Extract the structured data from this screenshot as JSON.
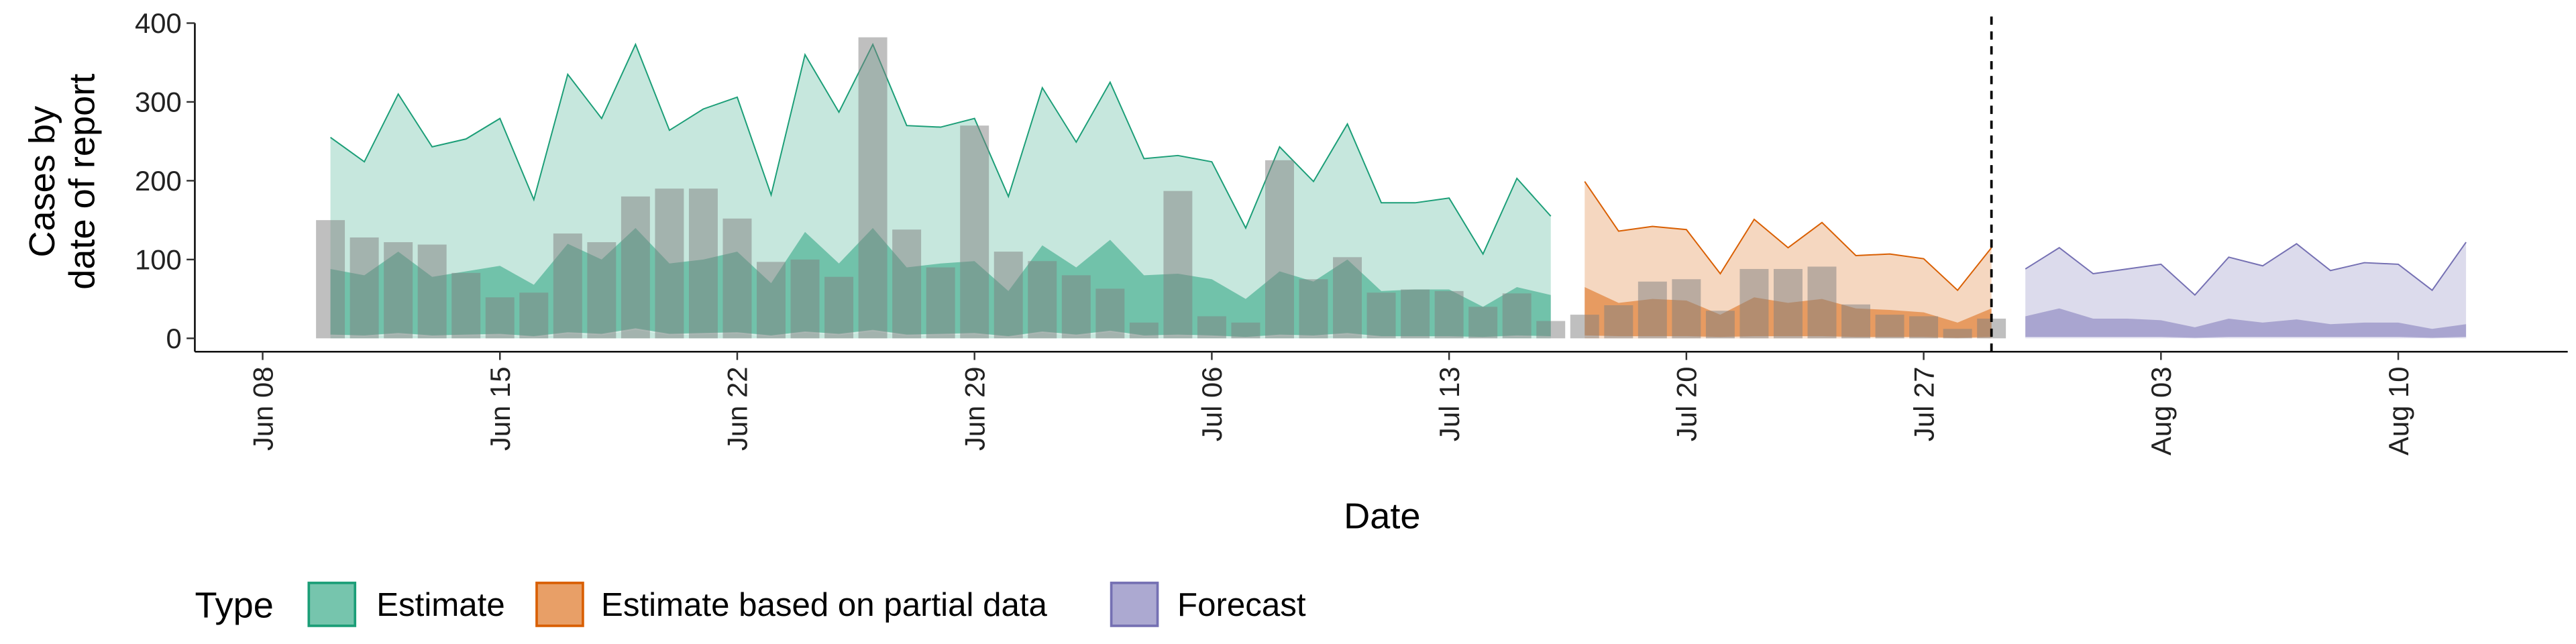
{
  "chart_data": {
    "type": "area",
    "xlabel": "Date",
    "ylabel": [
      "Cases by",
      "date of report"
    ],
    "legend_title": "Type",
    "legend": "bottom",
    "xlim": [
      "06-06",
      "08-15"
    ],
    "xticks": [
      {
        "value": "06-08",
        "label": "Jun 08"
      },
      {
        "value": "06-15",
        "label": "Jun 15"
      },
      {
        "value": "06-22",
        "label": "Jun 22"
      },
      {
        "value": "06-29",
        "label": "Jun 29"
      },
      {
        "value": "07-06",
        "label": "Jul 06"
      },
      {
        "value": "07-13",
        "label": "Jul 13"
      },
      {
        "value": "07-20",
        "label": "Jul 20"
      },
      {
        "value": "07-27",
        "label": "Jul 27"
      },
      {
        "value": "08-03",
        "label": "Aug 03"
      },
      {
        "value": "08-10",
        "label": "Aug 10"
      }
    ],
    "ylim": [
      -17,
      400
    ],
    "yticks": [
      0,
      100,
      200,
      300,
      400
    ],
    "vline": "07-29",
    "series": [
      {
        "name": "Estimate",
        "color": "#1b9e77",
        "x": [
          "06-10",
          "06-11",
          "06-12",
          "06-13",
          "06-14",
          "06-15",
          "06-16",
          "06-17",
          "06-18",
          "06-19",
          "06-20",
          "06-21",
          "06-22",
          "06-23",
          "06-24",
          "06-25",
          "06-26",
          "06-27",
          "06-28",
          "06-29",
          "06-30",
          "07-01",
          "07-02",
          "07-03",
          "07-04",
          "07-05",
          "07-06",
          "07-07",
          "07-08",
          "07-09",
          "07-10",
          "07-11",
          "07-12",
          "07-13",
          "07-14",
          "07-15",
          "07-16"
        ],
        "upper_90": [
          255,
          224,
          310,
          243,
          253,
          279,
          176,
          335,
          279,
          373,
          264,
          291,
          306,
          182,
          360,
          287,
          373,
          270,
          268,
          279,
          180,
          318,
          249,
          325,
          228,
          232,
          224,
          140,
          243,
          199,
          272,
          172,
          172,
          178,
          107,
          203,
          155
        ],
        "lower_90": [
          0,
          0,
          0,
          0,
          0,
          0,
          0,
          0,
          0,
          0,
          0,
          0,
          0,
          0,
          0,
          0,
          0,
          0,
          0,
          0,
          0,
          0,
          0,
          0,
          0,
          0,
          0,
          0,
          0,
          0,
          0,
          0,
          0,
          0,
          0,
          0,
          0
        ],
        "upper_50": [
          88,
          80,
          110,
          78,
          85,
          92,
          68,
          120,
          100,
          140,
          95,
          100,
          110,
          70,
          135,
          95,
          140,
          90,
          95,
          98,
          60,
          118,
          90,
          125,
          80,
          82,
          75,
          50,
          85,
          72,
          100,
          60,
          62,
          62,
          40,
          65,
          55
        ],
        "lower_50": [
          4,
          3,
          6,
          3,
          4,
          5,
          2,
          7,
          5,
          12,
          5,
          6,
          7,
          3,
          8,
          5,
          10,
          4,
          5,
          6,
          2,
          8,
          4,
          9,
          3,
          4,
          3,
          1,
          4,
          3,
          6,
          2,
          2,
          2,
          1,
          3,
          2
        ]
      },
      {
        "name": "Estimate based on partial data",
        "color": "#d95f02",
        "x": [
          "07-17",
          "07-18",
          "07-19",
          "07-20",
          "07-21",
          "07-22",
          "07-23",
          "07-24",
          "07-25",
          "07-26",
          "07-27",
          "07-28",
          "07-29"
        ],
        "upper_90": [
          199,
          136,
          142,
          138,
          82,
          151,
          115,
          147,
          105,
          107,
          101,
          61,
          115
        ],
        "lower_90": [
          0,
          0,
          0,
          0,
          0,
          0,
          0,
          0,
          0,
          0,
          0,
          0,
          0
        ],
        "upper_50": [
          65,
          45,
          50,
          48,
          30,
          52,
          45,
          50,
          38,
          36,
          33,
          20,
          38
        ],
        "lower_50": [
          3,
          2,
          2,
          2,
          1,
          2,
          2,
          2,
          1,
          1,
          1,
          0,
          1
        ]
      },
      {
        "name": "Forecast",
        "color": "#7570b3",
        "x": [
          "07-30",
          "07-31",
          "08-01",
          "08-02",
          "08-03",
          "08-04",
          "08-05",
          "08-06",
          "08-07",
          "08-08",
          "08-09",
          "08-10",
          "08-11",
          "08-12"
        ],
        "upper_90": [
          88,
          115,
          82,
          88,
          94,
          55,
          103,
          92,
          120,
          86,
          96,
          94,
          61,
          122
        ],
        "lower_90": [
          0,
          0,
          0,
          0,
          0,
          0,
          0,
          0,
          0,
          0,
          0,
          0,
          0,
          0
        ],
        "upper_50": [
          28,
          38,
          25,
          25,
          23,
          14,
          25,
          20,
          24,
          18,
          20,
          20,
          12,
          18
        ],
        "lower_50": [
          1,
          1,
          1,
          1,
          1,
          0,
          1,
          1,
          1,
          1,
          1,
          1,
          0,
          1
        ]
      }
    ],
    "bars": {
      "color": "#808080",
      "x": [
        "06-10",
        "06-11",
        "06-12",
        "06-13",
        "06-14",
        "06-15",
        "06-16",
        "06-17",
        "06-18",
        "06-19",
        "06-20",
        "06-21",
        "06-22",
        "06-23",
        "06-24",
        "06-25",
        "06-26",
        "06-27",
        "06-28",
        "06-29",
        "06-30",
        "07-01",
        "07-02",
        "07-03",
        "07-04",
        "07-05",
        "07-06",
        "07-07",
        "07-08",
        "07-09",
        "07-10",
        "07-11",
        "07-12",
        "07-13",
        "07-14",
        "07-15",
        "07-16",
        "07-17",
        "07-18",
        "07-19",
        "07-20",
        "07-21",
        "07-22",
        "07-23",
        "07-24",
        "07-25",
        "07-26",
        "07-27",
        "07-28",
        "07-29"
      ],
      "values": [
        150,
        128,
        122,
        119,
        83,
        52,
        58,
        133,
        122,
        180,
        190,
        190,
        152,
        97,
        100,
        78,
        382,
        138,
        90,
        270,
        110,
        98,
        80,
        63,
        20,
        187,
        28,
        20,
        226,
        75,
        103,
        58,
        62,
        60,
        40,
        57,
        22,
        30,
        42,
        72,
        75,
        35,
        88,
        88,
        91,
        43,
        30,
        28,
        12,
        25
      ]
    }
  }
}
